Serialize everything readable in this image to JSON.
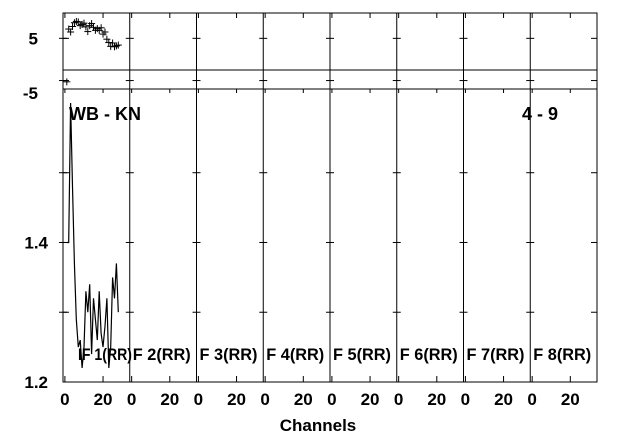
{
  "chart_data": {
    "type": "line",
    "xlabel": "Channels",
    "baseline_label": "WB - KN",
    "time_label": "4 - 9",
    "if_labels": [
      "IF 1(RR)",
      "F 2(RR)",
      "F 3(RR)",
      "F 4(RR)",
      "F 5(RR)",
      "F 6(RR)",
      "F 7(RR)",
      "F 8(RR)"
    ],
    "x_ticks": [
      0,
      20
    ],
    "xlim": [
      -1,
      34
    ],
    "phase_panel": {
      "ylim": [
        -7,
        11
      ],
      "y_ticks": [
        5,
        -5
      ],
      "points": [
        {
          "x": 1,
          "y": -5.3
        },
        {
          "x": 2,
          "y": 7.2
        },
        {
          "x": 3,
          "y": 6.5
        },
        {
          "x": 4,
          "y": 7.8
        },
        {
          "x": 5,
          "y": 8.7
        },
        {
          "x": 6,
          "y": 9.0
        },
        {
          "x": 7,
          "y": 8.9
        },
        {
          "x": 8,
          "y": 8.0
        },
        {
          "x": 9,
          "y": 8.3
        },
        {
          "x": 10,
          "y": 8.6
        },
        {
          "x": 11,
          "y": 7.7
        },
        {
          "x": 12,
          "y": 6.6
        },
        {
          "x": 13,
          "y": 8.0
        },
        {
          "x": 14,
          "y": 8.5
        },
        {
          "x": 15,
          "y": 7.6
        },
        {
          "x": 16,
          "y": 6.9
        },
        {
          "x": 17,
          "y": 7.3
        },
        {
          "x": 18,
          "y": 6.9
        },
        {
          "x": 19,
          "y": 7.5
        },
        {
          "x": 20,
          "y": 6.0
        },
        {
          "x": 21,
          "y": 6.5
        },
        {
          "x": 22,
          "y": 4.8
        },
        {
          "x": 23,
          "y": 4.0
        },
        {
          "x": 24,
          "y": 3.1
        },
        {
          "x": 25,
          "y": 3.9
        },
        {
          "x": 26,
          "y": 3.0
        },
        {
          "x": 27,
          "y": 3.2
        },
        {
          "x": 28,
          "y": 3.4
        }
      ]
    },
    "amp_panel": {
      "ylim": [
        1.2,
        1.62
      ],
      "y_ticks": [
        1.4,
        1.2
      ],
      "series": [
        {
          "x": [
            1,
            2,
            3,
            4,
            5,
            6,
            7,
            8,
            9,
            10,
            11,
            12,
            13,
            14,
            15,
            16,
            17,
            18,
            19,
            20,
            21,
            22,
            23,
            24,
            25,
            26,
            27,
            28
          ],
          "y": [
            1.4,
            1.4,
            1.6,
            1.48,
            1.37,
            1.29,
            1.25,
            1.26,
            1.22,
            1.25,
            1.33,
            1.3,
            1.34,
            1.24,
            1.32,
            1.29,
            1.26,
            1.33,
            1.27,
            1.25,
            1.28,
            1.32,
            1.22,
            1.25,
            1.35,
            1.32,
            1.37,
            1.3
          ]
        }
      ]
    }
  }
}
